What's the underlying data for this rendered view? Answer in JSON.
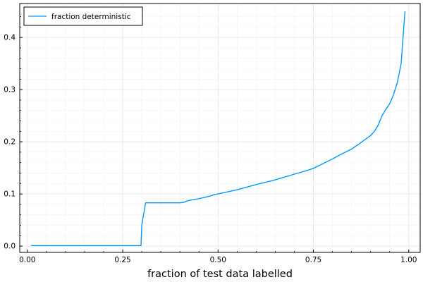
{
  "chart_data": {
    "type": "line",
    "title": "",
    "xlabel": "fraction of test data labelled",
    "ylabel": "",
    "xlim": [
      -0.02,
      1.03
    ],
    "ylim": [
      -0.012,
      0.465
    ],
    "xticks": [
      0.0,
      0.25,
      0.5,
      0.75,
      1.0
    ],
    "xtick_labels": [
      "0.00",
      "0.25",
      "0.50",
      "0.75",
      "1.00"
    ],
    "yticks": [
      0.0,
      0.1,
      0.2,
      0.3,
      0.4
    ],
    "ytick_labels": [
      "0.0",
      "0.1",
      "0.2",
      "0.3",
      "0.4"
    ],
    "grid": true,
    "legend_position": "top-left",
    "colors": {
      "series": "#009AFA",
      "grid": "#e6e6e6",
      "axis": "#000000"
    },
    "series": [
      {
        "name": "fraction deterministic",
        "x": [
          0.01,
          0.05,
          0.1,
          0.15,
          0.2,
          0.25,
          0.298,
          0.3,
          0.31,
          0.35,
          0.4,
          0.41,
          0.42,
          0.45,
          0.48,
          0.49,
          0.5,
          0.55,
          0.6,
          0.65,
          0.7,
          0.72,
          0.75,
          0.78,
          0.8,
          0.82,
          0.85,
          0.87,
          0.9,
          0.91,
          0.92,
          0.93,
          0.94,
          0.95,
          0.96,
          0.97,
          0.98,
          0.99
        ],
        "y": [
          0.001,
          0.001,
          0.001,
          0.001,
          0.001,
          0.001,
          0.001,
          0.04,
          0.083,
          0.083,
          0.083,
          0.084,
          0.087,
          0.091,
          0.096,
          0.099,
          0.1,
          0.108,
          0.118,
          0.127,
          0.138,
          0.142,
          0.149,
          0.16,
          0.167,
          0.175,
          0.186,
          0.196,
          0.212,
          0.22,
          0.232,
          0.25,
          0.262,
          0.273,
          0.29,
          0.313,
          0.35,
          0.45
        ]
      }
    ]
  }
}
